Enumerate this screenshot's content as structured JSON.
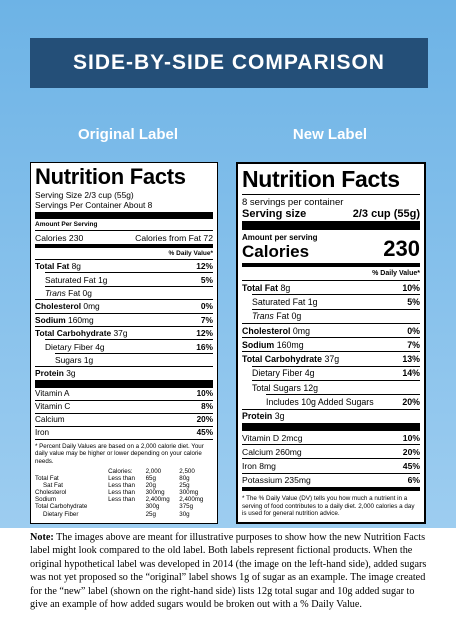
{
  "header": {
    "title": "SIDE-BY-SIDE COMPARISON"
  },
  "original": {
    "heading": "Original Label",
    "title": "Nutrition Facts",
    "serving_size": "Serving Size 2/3 cup (55g)",
    "servings": "Servings Per Container About 8",
    "amount_per_serving": "Amount Per Serving",
    "calories": "Calories 230",
    "calories_from_fat": "Calories from Fat 72",
    "dv_header": "% Daily Value*",
    "nutrients": [
      {
        "name": "Total Fat",
        "amount": "8g",
        "dv": "12%"
      },
      {
        "name": "Saturated Fat 1g",
        "dv": "5%"
      },
      {
        "name_italic": "Trans",
        "name": "Fat 0g"
      },
      {
        "name": "Cholesterol",
        "amount": "0mg",
        "dv": "0%"
      },
      {
        "name": "Sodium",
        "amount": "160mg",
        "dv": "7%"
      },
      {
        "name": "Total Carbohydrate",
        "amount": "37g",
        "dv": "12%"
      },
      {
        "name": "Dietary Fiber 4g",
        "dv": "16%"
      },
      {
        "name": "Sugars 1g"
      },
      {
        "name": "Protein",
        "amount": "3g"
      }
    ],
    "vitamins": [
      {
        "name": "Vitamin A",
        "dv": "10%"
      },
      {
        "name": "Vitamin C",
        "dv": "8%"
      },
      {
        "name": "Calcium",
        "dv": "20%"
      },
      {
        "name": "Iron",
        "dv": "45%"
      }
    ],
    "footnote": "* Percent Daily Values are based on a 2,000 calorie diet. Your daily value may be higher or lower depending on your calorie needs.",
    "dv_table": {
      "columns": [
        "Calories:",
        "2,000",
        "2,500"
      ],
      "rows": [
        [
          "Total Fat",
          "Less than",
          "65g",
          "80g"
        ],
        [
          "Sat Fat",
          "Less than",
          "20g",
          "25g"
        ],
        [
          "Cholesterol",
          "Less than",
          "300mg",
          "300mg"
        ],
        [
          "Sodium",
          "Less than",
          "2,400mg",
          "2,400mg"
        ],
        [
          "Total Carbohydrate",
          "300g",
          "375g"
        ],
        [
          "Dietary Fiber",
          "25g",
          "30g"
        ]
      ]
    }
  },
  "new": {
    "heading": "New Label",
    "title": "Nutrition Facts",
    "servings": "8 servings per container",
    "serving_size_label": "Serving size",
    "serving_size": "2/3 cup (55g)",
    "amount_per_serving": "Amount per serving",
    "calories_label": "Calories",
    "calories": "230",
    "dv_header": "% Daily Value*",
    "nutrients": [
      {
        "name": "Total Fat",
        "amount": "8g",
        "dv": "10%"
      },
      {
        "name": "Saturated Fat 1g",
        "dv": "5%"
      },
      {
        "name_italic": "Trans",
        "name": "Fat 0g"
      },
      {
        "name": "Cholesterol",
        "amount": "0mg",
        "dv": "0%"
      },
      {
        "name": "Sodium",
        "amount": "160mg",
        "dv": "7%"
      },
      {
        "name": "Total Carbohydrate",
        "amount": "37g",
        "dv": "13%"
      },
      {
        "name": "Dietary Fiber 4g",
        "dv": "14%"
      },
      {
        "name": "Total Sugars 12g"
      },
      {
        "name": "Includes 10g Added Sugars",
        "dv": "20%"
      },
      {
        "name": "Protein",
        "amount": "3g"
      }
    ],
    "vitamins": [
      {
        "name": "Vitamin D 2mcg",
        "dv": "10%"
      },
      {
        "name": "Calcium 260mg",
        "dv": "20%"
      },
      {
        "name": "Iron 8mg",
        "dv": "45%"
      },
      {
        "name": "Potassium 235mg",
        "dv": "6%"
      }
    ],
    "footnote": "* The % Daily Value (DV) tells you how much a nutrient in a serving of food contributes to a daily diet. 2,000 calories a day is used for general nutrition advice."
  },
  "note": {
    "label": "Note:",
    "text": "The images above are meant for illustrative purposes to show how the new Nutrition Facts label might look compared to the old label. Both labels represent fictional products. When the original hypothetical label was developed in 2014 (the image on the left-hand side), added sugars was not yet proposed so the “original” label shows 1g of sugar as an example. The image created for the “new” label (shown on the right-hand side) lists 12g total sugar and 10g added sugar to give an example of how added sugars would be broken out with a % Daily Value."
  }
}
